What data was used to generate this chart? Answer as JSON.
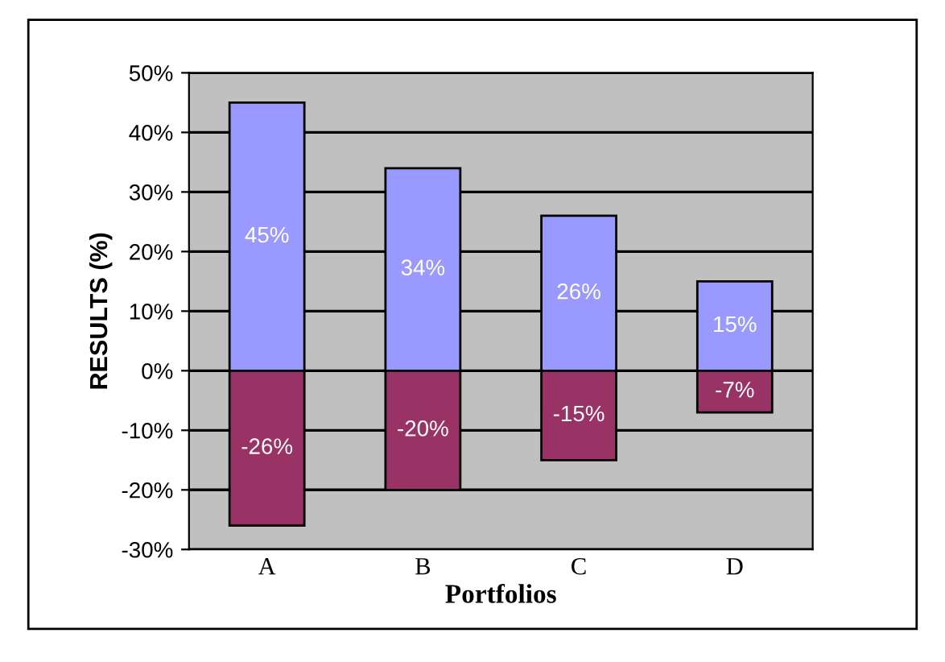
{
  "chart_data": {
    "type": "bar",
    "stacked": true,
    "xlabel": "Portfolios",
    "ylabel": "RESULTS (%)",
    "categories": [
      "A",
      "B",
      "C",
      "D"
    ],
    "series": [
      {
        "color": "#9999ff",
        "values": [
          45,
          34,
          26,
          15
        ],
        "value_labels": [
          "45%",
          "34%",
          "26%",
          "15%"
        ]
      },
      {
        "color": "#993366",
        "values": [
          -26,
          -20,
          -15,
          -7
        ],
        "value_labels": [
          "-26%",
          "-20%",
          "-15%",
          "-7%"
        ]
      }
    ],
    "ylim": [
      -30,
      50
    ],
    "yticks": [
      {
        "value": -30,
        "label": "-30%"
      },
      {
        "value": -20,
        "label": "-20%"
      },
      {
        "value": -10,
        "label": "-10%"
      },
      {
        "value": 0,
        "label": "0%"
      },
      {
        "value": 10,
        "label": "10%"
      },
      {
        "value": 20,
        "label": "20%"
      },
      {
        "value": 30,
        "label": "30%"
      },
      {
        "value": 40,
        "label": "40%"
      },
      {
        "value": 50,
        "label": "50%"
      }
    ],
    "grid": "y",
    "legend": false
  }
}
